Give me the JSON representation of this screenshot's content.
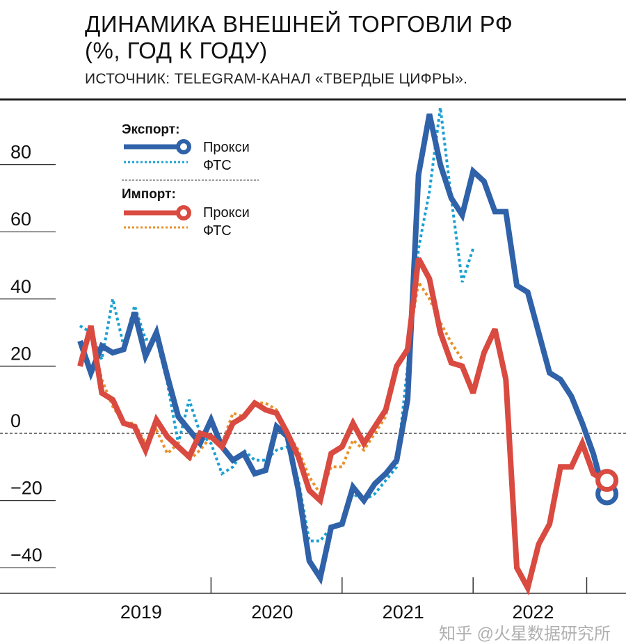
{
  "header": {
    "title_line1": "ДИНАМИКА ВНЕШНЕЙ ТОРГОВЛИ РФ",
    "title_line2": "(%, ГОД К ГОДУ)",
    "subtitle": "ИСТОЧНИК: TELEGRAM-КАНАЛ «ТВЕРДЫЕ ЦИФРЫ»."
  },
  "watermark": "知乎 @火星数据研究所",
  "chart_data": {
    "type": "line",
    "title": "ДИНАМИКА ВНЕШНЕЙ ТОРГОВЛИ РФ (%, ГОД К ГОДУ)",
    "xlabel": "",
    "ylabel": "%",
    "x_unit": "months since Jan 2019",
    "xlim": [
      0,
      48.5
    ],
    "ylim": [
      -48,
      100
    ],
    "y_ticks": [
      80,
      60,
      40,
      20,
      0,
      -20,
      -40
    ],
    "y_tick_labels": [
      "80",
      "60",
      "40",
      "20",
      "0",
      "−20",
      "−40"
    ],
    "x_ticks": [
      12,
      24,
      36,
      46.4
    ],
    "x_tick_labels": [
      {
        "label": "2019",
        "x": 5.6
      },
      {
        "label": "2020",
        "x": 17.6
      },
      {
        "label": "2021",
        "x": 29.6
      },
      {
        "label": "2022",
        "x": 41.5
      }
    ],
    "zero_line": "dashed",
    "legend": {
      "placement": "top-left",
      "groups": [
        {
          "heading": "Экспорт:",
          "items": [
            "Прокси",
            "ФТС"
          ]
        },
        {
          "heading": "Импорт:",
          "items": [
            "Прокси",
            "ФТС"
          ]
        }
      ]
    },
    "colors": {
      "export_proxy": "#2f62a8",
      "export_fts": "#1aa0d2",
      "import_proxy": "#d94a40",
      "import_fts": "#e8922c"
    },
    "series": [
      {
        "name": "Экспорт — Прокси",
        "key": "export_proxy",
        "style": "solid",
        "end_marker": true,
        "values": [
          27.5,
          18,
          26,
          24,
          25,
          36,
          23,
          30,
          17,
          5,
          1,
          -3,
          4,
          -4,
          -8,
          -6,
          -12,
          -11,
          2,
          -1,
          -17,
          -38,
          -43,
          -28,
          -27,
          -16,
          -20,
          -15,
          -12,
          -8,
          10,
          77,
          95,
          80,
          70,
          65,
          78,
          75,
          66,
          66,
          44,
          42,
          30,
          18,
          16,
          11,
          3,
          -6,
          -18
        ]
      },
      {
        "name": "Экспорт — ФТС",
        "key": "export_fts",
        "style": "dotted",
        "end_marker": false,
        "values": [
          32,
          30,
          22,
          40,
          26,
          38,
          28,
          28,
          15,
          -3,
          10,
          0,
          -3,
          -12,
          -10,
          -5,
          -8,
          -8,
          -5,
          -4,
          -14,
          -32,
          -32,
          -28,
          -27,
          -18,
          -20,
          -18,
          -14,
          -10,
          20,
          55,
          72,
          97,
          70,
          45,
          55,
          null,
          null,
          null,
          null,
          null,
          null,
          null,
          null,
          null,
          null,
          null,
          null
        ]
      },
      {
        "name": "Импорт — Прокси",
        "key": "import_proxy",
        "style": "solid",
        "end_marker": true,
        "values": [
          20,
          32,
          12,
          10,
          3,
          2,
          -5,
          4,
          -1,
          -4,
          -7,
          0,
          -1,
          -4,
          3,
          5,
          9,
          7,
          6,
          0,
          -7,
          -17,
          -20,
          -6,
          -4,
          3,
          -3,
          2,
          7,
          20,
          25,
          52,
          46,
          30,
          21,
          20,
          12,
          24,
          31,
          16,
          -40,
          -46,
          -33,
          -27,
          -10,
          -10,
          -3,
          -12,
          -14
        ]
      },
      {
        "name": "Импорт — ФТС",
        "key": "import_fts",
        "style": "dotted",
        "end_marker": false,
        "values": [
          20,
          30,
          16,
          8,
          3,
          3,
          -3,
          1,
          -6,
          -3,
          -8,
          -5,
          -1,
          -3,
          6,
          5,
          9,
          9,
          7,
          0,
          -5,
          -13,
          -18,
          -10,
          -10,
          -2,
          -5,
          0,
          5,
          20,
          25,
          45,
          40,
          33,
          27,
          22,
          null,
          null,
          null,
          null,
          null,
          null,
          null,
          null,
          null,
          null,
          null,
          null,
          null
        ]
      }
    ]
  }
}
